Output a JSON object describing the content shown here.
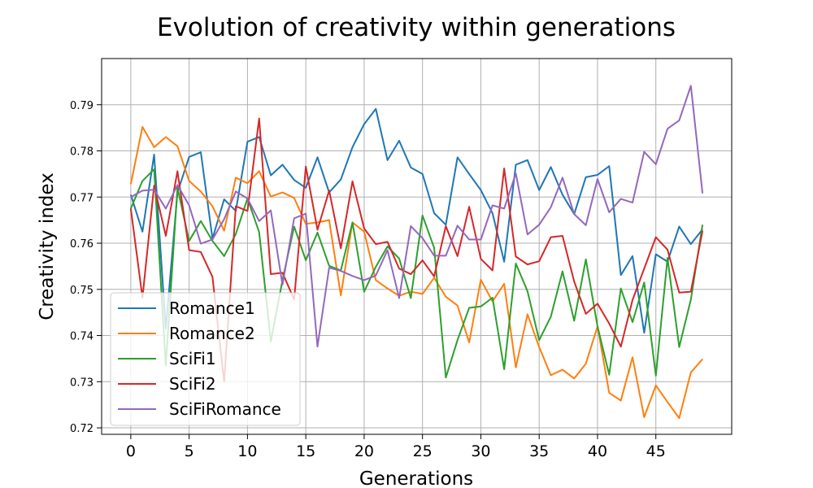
{
  "chart_data": {
    "type": "line",
    "title": "Evolution of creativity within generations",
    "xlabel": "Generations",
    "ylabel": "Creativity index",
    "xlim": [
      -2.5,
      51.5
    ],
    "ylim": [
      0.7186,
      0.8
    ],
    "xticks": [
      0,
      5,
      10,
      15,
      20,
      25,
      30,
      35,
      40,
      45
    ],
    "yticks": [
      0.72,
      0.73,
      0.74,
      0.75,
      0.76,
      0.77,
      0.78,
      0.79
    ],
    "ytick_labels": [
      "0.72",
      "0.73",
      "0.74",
      "0.75",
      "0.76",
      "0.77",
      "0.78",
      "0.79"
    ],
    "grid": true,
    "legend_position": "lower-left",
    "x": [
      0,
      1,
      2,
      3,
      4,
      5,
      6,
      7,
      8,
      9,
      10,
      11,
      12,
      13,
      14,
      15,
      16,
      17,
      18,
      19,
      20,
      21,
      22,
      23,
      24,
      25,
      26,
      27,
      28,
      29,
      30,
      31,
      32,
      33,
      34,
      35,
      36,
      37,
      38,
      39,
      40,
      41,
      42,
      43,
      44,
      45,
      46,
      47,
      48,
      49
    ],
    "series": [
      {
        "name": "Romance1",
        "color": "#1f77b4",
        "values": [
          0.7705,
          0.7625,
          0.7792,
          0.7415,
          0.771,
          0.7787,
          0.7797,
          0.761,
          0.7695,
          0.767,
          0.782,
          0.783,
          0.7747,
          0.777,
          0.7737,
          0.772,
          0.7786,
          0.771,
          0.7738,
          0.7808,
          0.7858,
          0.7891,
          0.778,
          0.7822,
          0.7764,
          0.775,
          0.7665,
          0.764,
          0.7786,
          0.775,
          0.7715,
          0.7665,
          0.756,
          0.777,
          0.778,
          0.7715,
          0.7765,
          0.7705,
          0.7663,
          0.7743,
          0.7748,
          0.7767,
          0.7531,
          0.7572,
          0.7406,
          0.7576,
          0.756,
          0.7636,
          0.7598,
          0.763
        ]
      },
      {
        "name": "Romance2",
        "color": "#ff7f0e",
        "values": [
          0.7728,
          0.7852,
          0.7808,
          0.783,
          0.781,
          0.7735,
          0.7712,
          0.768,
          0.7627,
          0.7742,
          0.773,
          0.7756,
          0.7701,
          0.771,
          0.7698,
          0.7642,
          0.7645,
          0.765,
          0.7487,
          0.7645,
          0.7625,
          0.752,
          0.7502,
          0.7486,
          0.7495,
          0.749,
          0.7525,
          0.7484,
          0.7465,
          0.7385,
          0.7521,
          0.7474,
          0.7512,
          0.7331,
          0.7446,
          0.7375,
          0.7314,
          0.7326,
          0.7307,
          0.7339,
          0.742,
          0.7276,
          0.7259,
          0.7353,
          0.7223,
          0.7292,
          0.7256,
          0.7221,
          0.732,
          0.7349
        ]
      },
      {
        "name": "SciFi1",
        "color": "#2ca02c",
        "values": [
          0.7675,
          0.7735,
          0.776,
          0.7335,
          0.772,
          0.7605,
          0.7648,
          0.7605,
          0.7572,
          0.762,
          0.7697,
          0.7624,
          0.7387,
          0.752,
          0.7636,
          0.7563,
          0.7623,
          0.7551,
          0.7541,
          0.7645,
          0.7495,
          0.7549,
          0.7593,
          0.7567,
          0.7481,
          0.766,
          0.759,
          0.7309,
          0.739,
          0.746,
          0.7463,
          0.7482,
          0.7327,
          0.7556,
          0.7496,
          0.739,
          0.7441,
          0.7539,
          0.7432,
          0.7565,
          0.742,
          0.7315,
          0.7502,
          0.7429,
          0.7515,
          0.7313,
          0.7568,
          0.7375,
          0.7478,
          0.764
        ]
      },
      {
        "name": "SciFi2",
        "color": "#d62728",
        "values": [
          0.7675,
          0.7482,
          0.7725,
          0.7616,
          0.7756,
          0.7585,
          0.7581,
          0.7527,
          0.73,
          0.768,
          0.767,
          0.787,
          0.7533,
          0.7536,
          0.7478,
          0.7766,
          0.7629,
          0.7714,
          0.7589,
          0.7734,
          0.7632,
          0.7598,
          0.7603,
          0.7545,
          0.7533,
          0.7563,
          0.7528,
          0.7637,
          0.7572,
          0.7679,
          0.7566,
          0.7541,
          0.7762,
          0.7571,
          0.7554,
          0.7561,
          0.7613,
          0.7616,
          0.7517,
          0.7447,
          0.7469,
          0.7426,
          0.7376,
          0.7477,
          0.7545,
          0.7613,
          0.7586,
          0.7493,
          0.7495,
          0.7627
        ]
      },
      {
        "name": "SciFiRomance",
        "color": "#9467bd",
        "values": [
          0.77,
          0.7714,
          0.7716,
          0.7675,
          0.7726,
          0.7682,
          0.7599,
          0.7608,
          0.7652,
          0.7712,
          0.7697,
          0.7648,
          0.7671,
          0.751,
          0.7654,
          0.7664,
          0.7376,
          0.7547,
          0.754,
          0.7529,
          0.752,
          0.753,
          0.7585,
          0.7481,
          0.7637,
          0.7611,
          0.7573,
          0.7573,
          0.7638,
          0.7608,
          0.7608,
          0.7682,
          0.7675,
          0.7751,
          0.7619,
          0.764,
          0.7678,
          0.7742,
          0.7663,
          0.7639,
          0.7739,
          0.7667,
          0.7696,
          0.7688,
          0.7798,
          0.7771,
          0.7848,
          0.7866,
          0.7941,
          0.7708
        ]
      }
    ]
  }
}
